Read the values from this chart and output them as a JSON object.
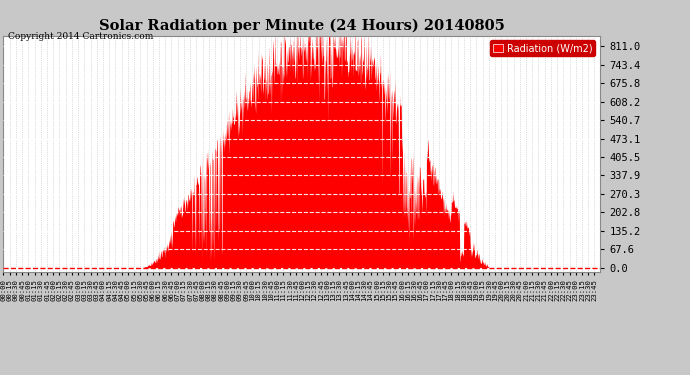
{
  "title": "Solar Radiation per Minute (24 Hours) 20140805",
  "copyright_text": "Copyright 2014 Cartronics.com",
  "legend_label": "Radiation (W/m2)",
  "fill_color": "#FF0000",
  "background_color": "#C8C8C8",
  "plot_bg_color": "#FFFFFF",
  "grid_h_color": "#FFFFFF",
  "grid_v_color": "#AAAAAA",
  "dashed_zero_color": "#FF0000",
  "ytick_labels": [
    "0.0",
    "67.6",
    "135.2",
    "202.8",
    "270.3",
    "337.9",
    "405.5",
    "473.1",
    "540.7",
    "608.2",
    "675.8",
    "743.4",
    "811.0"
  ],
  "ytick_values": [
    0.0,
    67.6,
    135.2,
    202.8,
    270.3,
    337.9,
    405.5,
    473.1,
    540.7,
    608.2,
    675.8,
    743.4,
    811.0
  ],
  "ymax": 850,
  "ymin": -15,
  "total_minutes": 1440,
  "sunrise_minute": 328,
  "sunset_minute": 1172,
  "peak_minute": 760,
  "peak_value": 811
}
